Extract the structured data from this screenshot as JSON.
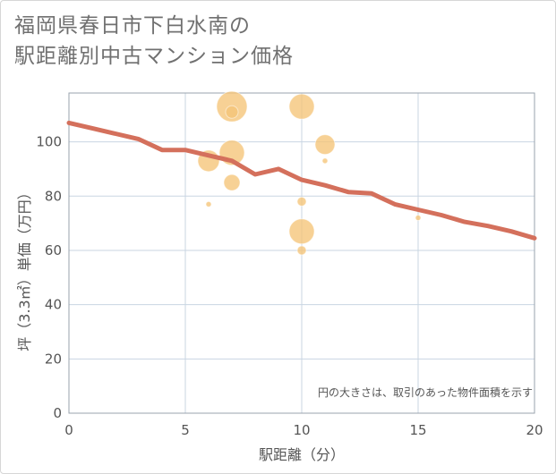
{
  "title": {
    "line1": "福岡県春日市下白水南の",
    "line2": "駅距離別中古マンション価格"
  },
  "chart_data": {
    "type": "scatter",
    "title": "福岡県春日市下白水南の駅距離別中古マンション価格",
    "xlabel": "駅距離（分）",
    "ylabel": "坪（3.3㎡）単価（万円）",
    "xlim": [
      0,
      20
    ],
    "ylim": [
      0,
      118
    ],
    "xticks": [
      0,
      5,
      10,
      15,
      20
    ],
    "yticks": [
      0,
      20,
      40,
      60,
      80,
      100
    ],
    "grid": true,
    "note": "円の大きさは、取引のあった物件面積を示す",
    "bubble_color": "#f5c477",
    "line_color": "#d4705c",
    "points": [
      {
        "x": 6,
        "y": 93,
        "size": 12
      },
      {
        "x": 6,
        "y": 77,
        "size": 3
      },
      {
        "x": 7,
        "y": 113,
        "size": 17
      },
      {
        "x": 7,
        "y": 111,
        "size": 7
      },
      {
        "x": 7,
        "y": 96,
        "size": 14
      },
      {
        "x": 7,
        "y": 85,
        "size": 9
      },
      {
        "x": 10,
        "y": 113,
        "size": 14
      },
      {
        "x": 10,
        "y": 78,
        "size": 5
      },
      {
        "x": 10,
        "y": 67,
        "size": 14
      },
      {
        "x": 10,
        "y": 60,
        "size": 5
      },
      {
        "x": 11,
        "y": 99,
        "size": 11
      },
      {
        "x": 11,
        "y": 93,
        "size": 3
      },
      {
        "x": 15,
        "y": 72,
        "size": 3
      }
    ],
    "trend": {
      "x": [
        0,
        1,
        2,
        3,
        4,
        5,
        6,
        7,
        8,
        9,
        10,
        11,
        12,
        13,
        14,
        15,
        16,
        17,
        18,
        19,
        20
      ],
      "y": [
        107,
        105,
        103,
        101,
        97,
        97,
        95,
        93,
        88,
        90,
        86,
        84,
        81.5,
        81,
        77,
        75,
        73,
        70.5,
        69,
        67,
        64.5
      ]
    }
  }
}
